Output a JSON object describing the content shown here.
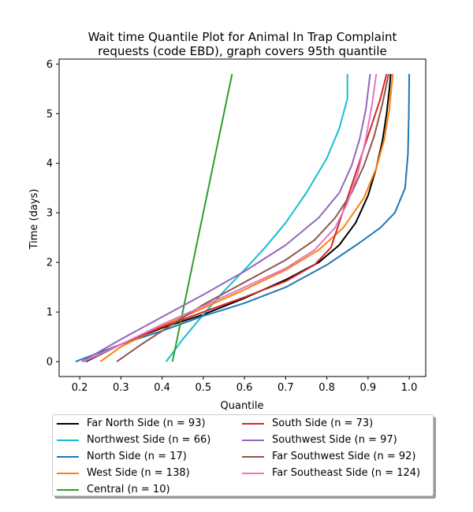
{
  "chart_data": {
    "type": "line",
    "title_lines": [
      "Wait time Quantile Plot for Animal In Trap Complaint",
      "requests (code EBD), graph covers 95th quantile"
    ],
    "xlabel": "Quantile",
    "ylabel": "Time (days)",
    "xlim": [
      0.15,
      1.04
    ],
    "ylim": [
      -0.3,
      6.1
    ],
    "xticks": [
      "0.2",
      "0.3",
      "0.4",
      "0.5",
      "0.6",
      "0.7",
      "0.8",
      "0.9",
      "1.0"
    ],
    "yticks": [
      "0",
      "1",
      "2",
      "3",
      "4",
      "5",
      "6"
    ],
    "grid": false,
    "legend_position": "below",
    "series": [
      {
        "name": "Far North Side (n = 93)",
        "color": "#000000",
        "points": [
          [
            0.215,
            0.0
          ],
          [
            0.3,
            0.35
          ],
          [
            0.4,
            0.68
          ],
          [
            0.5,
            0.95
          ],
          [
            0.6,
            1.28
          ],
          [
            0.7,
            1.65
          ],
          [
            0.78,
            2.0
          ],
          [
            0.83,
            2.35
          ],
          [
            0.87,
            2.8
          ],
          [
            0.9,
            3.35
          ],
          [
            0.92,
            3.9
          ],
          [
            0.935,
            4.45
          ],
          [
            0.945,
            5.0
          ],
          [
            0.952,
            5.5
          ],
          [
            0.955,
            5.8
          ]
        ]
      },
      {
        "name": "Northwest Side (n = 66)",
        "color": "#17becf",
        "points": [
          [
            0.41,
            0.0
          ],
          [
            0.45,
            0.45
          ],
          [
            0.5,
            0.95
          ],
          [
            0.55,
            1.42
          ],
          [
            0.6,
            1.85
          ],
          [
            0.65,
            2.3
          ],
          [
            0.7,
            2.8
          ],
          [
            0.75,
            3.4
          ],
          [
            0.8,
            4.1
          ],
          [
            0.83,
            4.7
          ],
          [
            0.85,
            5.3
          ],
          [
            0.85,
            5.8
          ]
        ]
      },
      {
        "name": "North Side (n = 17)",
        "color": "#1f77b4",
        "points": [
          [
            0.19,
            0.0
          ],
          [
            0.3,
            0.35
          ],
          [
            0.4,
            0.62
          ],
          [
            0.5,
            0.92
          ],
          [
            0.6,
            1.18
          ],
          [
            0.7,
            1.5
          ],
          [
            0.8,
            1.95
          ],
          [
            0.88,
            2.4
          ],
          [
            0.93,
            2.7
          ],
          [
            0.965,
            3.0
          ],
          [
            0.99,
            3.5
          ],
          [
            0.997,
            4.2
          ],
          [
            0.999,
            5.0
          ],
          [
            1.0,
            5.8
          ]
        ]
      },
      {
        "name": "West Side (n = 138)",
        "color": "#ff7f0e",
        "points": [
          [
            0.25,
            0.0
          ],
          [
            0.3,
            0.3
          ],
          [
            0.4,
            0.72
          ],
          [
            0.5,
            1.08
          ],
          [
            0.6,
            1.45
          ],
          [
            0.7,
            1.85
          ],
          [
            0.78,
            2.25
          ],
          [
            0.84,
            2.7
          ],
          [
            0.89,
            3.3
          ],
          [
            0.92,
            3.9
          ],
          [
            0.94,
            4.5
          ],
          [
            0.952,
            5.1
          ],
          [
            0.96,
            5.8
          ]
        ]
      },
      {
        "name": "Central (n = 10)",
        "color": "#2ca02c",
        "points": [
          [
            0.425,
            0.0
          ],
          [
            0.57,
            5.8
          ]
        ]
      },
      {
        "name": "South Side (n = 73)",
        "color": "#d62728",
        "points": [
          [
            0.21,
            0.0
          ],
          [
            0.3,
            0.35
          ],
          [
            0.4,
            0.7
          ],
          [
            0.5,
            1.0
          ],
          [
            0.6,
            1.3
          ],
          [
            0.7,
            1.62
          ],
          [
            0.77,
            1.95
          ],
          [
            0.81,
            2.3
          ],
          [
            0.83,
            2.8
          ],
          [
            0.85,
            3.3
          ],
          [
            0.87,
            3.8
          ],
          [
            0.89,
            4.3
          ],
          [
            0.91,
            4.8
          ],
          [
            0.93,
            5.3
          ],
          [
            0.945,
            5.8
          ]
        ]
      },
      {
        "name": "Southwest Side (n = 97)",
        "color": "#9467bd",
        "points": [
          [
            0.205,
            0.0
          ],
          [
            0.3,
            0.45
          ],
          [
            0.4,
            0.9
          ],
          [
            0.5,
            1.35
          ],
          [
            0.6,
            1.82
          ],
          [
            0.7,
            2.35
          ],
          [
            0.78,
            2.9
          ],
          [
            0.83,
            3.4
          ],
          [
            0.86,
            3.95
          ],
          [
            0.88,
            4.5
          ],
          [
            0.895,
            5.1
          ],
          [
            0.905,
            5.8
          ]
        ]
      },
      {
        "name": "Far Southwest Side (n = 92)",
        "color": "#8c564b",
        "points": [
          [
            0.29,
            0.0
          ],
          [
            0.35,
            0.35
          ],
          [
            0.4,
            0.62
          ],
          [
            0.5,
            1.15
          ],
          [
            0.6,
            1.6
          ],
          [
            0.7,
            2.05
          ],
          [
            0.77,
            2.45
          ],
          [
            0.82,
            2.9
          ],
          [
            0.86,
            3.4
          ],
          [
            0.89,
            3.95
          ],
          [
            0.915,
            4.55
          ],
          [
            0.935,
            5.2
          ],
          [
            0.95,
            5.8
          ]
        ]
      },
      {
        "name": "Far Southeast Side (n = 124)",
        "color": "#e377c2",
        "points": [
          [
            0.21,
            0.0
          ],
          [
            0.3,
            0.35
          ],
          [
            0.4,
            0.75
          ],
          [
            0.5,
            1.12
          ],
          [
            0.6,
            1.5
          ],
          [
            0.7,
            1.88
          ],
          [
            0.77,
            2.25
          ],
          [
            0.82,
            2.7
          ],
          [
            0.85,
            3.2
          ],
          [
            0.875,
            3.8
          ],
          [
            0.895,
            4.5
          ],
          [
            0.91,
            5.2
          ],
          [
            0.92,
            5.8
          ]
        ]
      }
    ]
  }
}
